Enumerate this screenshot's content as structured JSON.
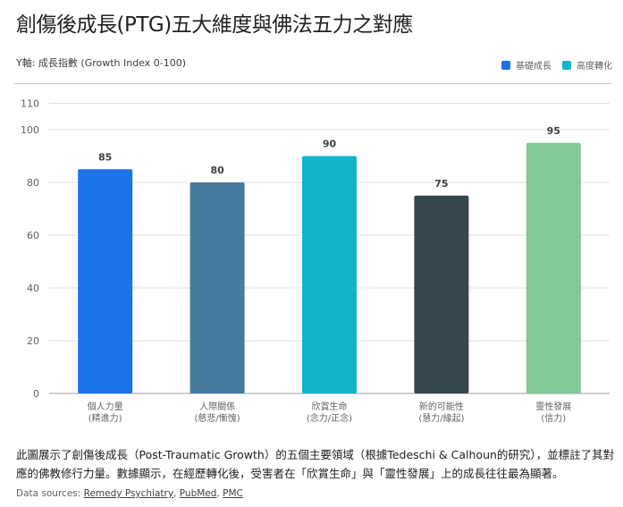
{
  "title": "創傷後成長(PTG)五大維度與佛法五力之對應",
  "chart_data": {
    "type": "bar",
    "ylabel": "Y軸: 成長指數 (Growth Index 0-100)",
    "ylim": [
      0,
      110
    ],
    "yticks": [
      0,
      20,
      40,
      60,
      80,
      100,
      110
    ],
    "grid": true,
    "legend_position": "top-right",
    "legend": [
      {
        "label": "基礎成長",
        "color": "#1a73e8"
      },
      {
        "label": "高度轉化",
        "color": "#12b5cb"
      }
    ],
    "categories": [
      [
        "個人力量",
        "(精進力)"
      ],
      [
        "人際關係",
        "(慈悲/慚愧)"
      ],
      [
        "欣賞生命",
        "(念力/正念)"
      ],
      [
        "新的可能性",
        "(慧力/緣起)"
      ],
      [
        "靈性發展",
        "(信力)"
      ]
    ],
    "values": [
      85,
      80,
      90,
      75,
      95
    ],
    "colors": [
      "#1a73e8",
      "#457b9d",
      "#12b5cb",
      "#37474f",
      "#81c995"
    ]
  },
  "description": "此圖展示了創傷後成長（Post-Traumatic Growth）的五個主要領域（根據Tedeschi & Calhoun的研究），並標註了其對應的佛教修行力量。數據顯示，在經歷轉化後，受害者在「欣賞生命」與「靈性發展」上的成長往往最為顯著。",
  "sources": {
    "label": "Data sources: ",
    "links": [
      "Remedy Psychiatry",
      "PubMed",
      "PMC"
    ]
  }
}
